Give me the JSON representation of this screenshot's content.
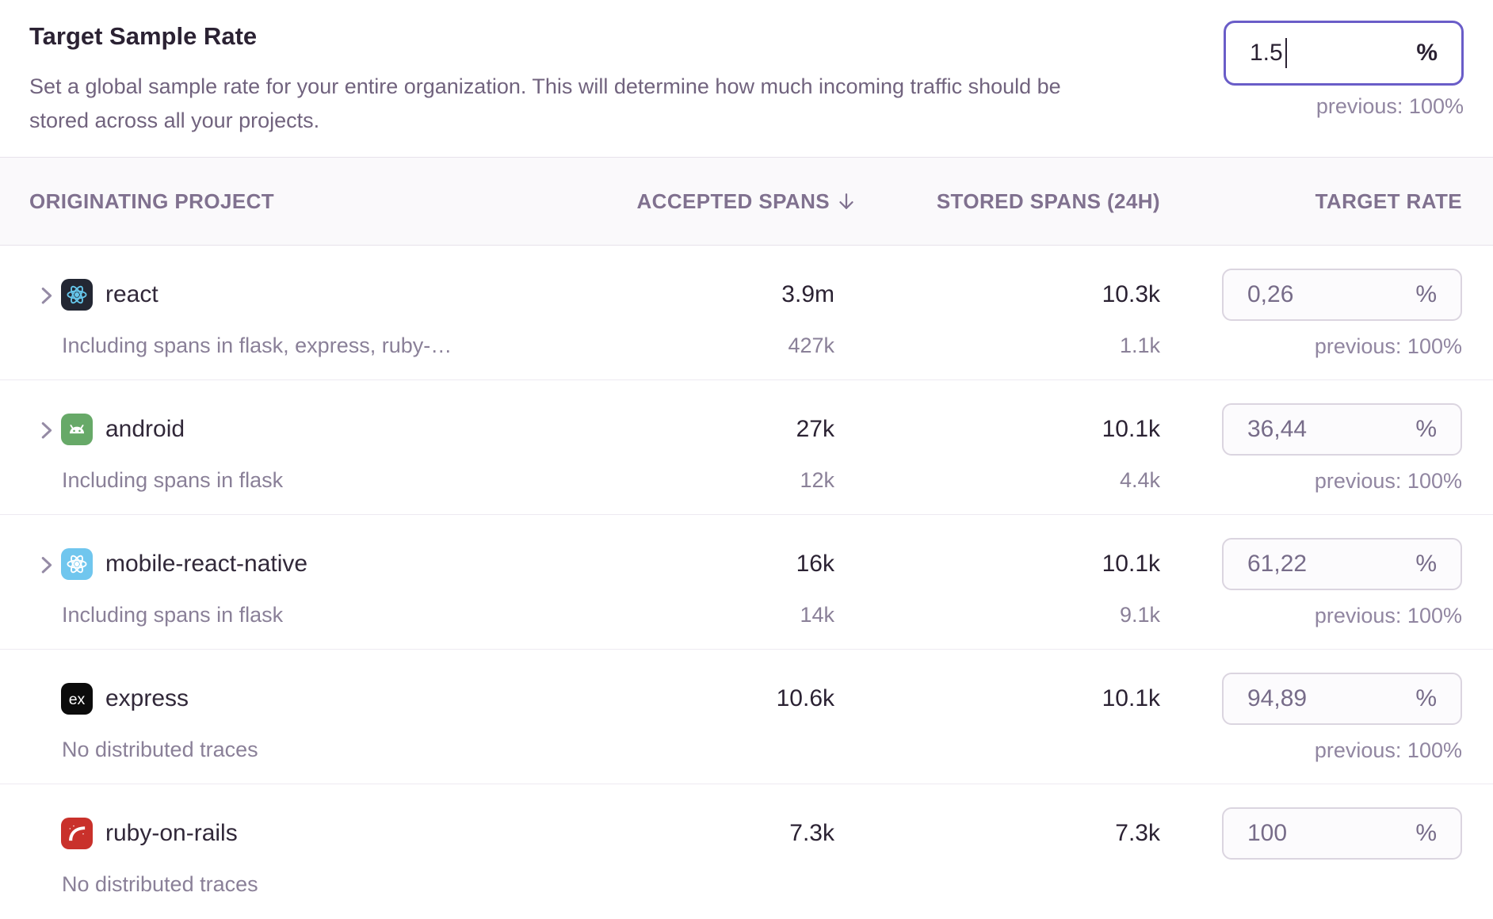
{
  "header": {
    "title": "Target Sample Rate",
    "description": "Set a global sample rate for your entire organization. This will determine how much incoming traffic should be stored across all your projects.",
    "input": {
      "value": "1.5",
      "suffix": "%",
      "previous": "previous: 100%"
    }
  },
  "table": {
    "columns": [
      {
        "label": "ORIGINATING PROJECT"
      },
      {
        "label": "ACCEPTED SPANS",
        "sort": "desc"
      },
      {
        "label": "STORED SPANS (24H)"
      },
      {
        "label": "TARGET RATE"
      }
    ],
    "rows": [
      {
        "name": "react",
        "icon": "react",
        "icon_bg": "#232733",
        "icon_fg": "#66c7ec",
        "expandable": true,
        "subtext": "Including spans in flask, express, ruby-…",
        "accepted": "3.9m",
        "accepted_sub": "427k",
        "stored": "10.3k",
        "stored_sub": "1.1k",
        "rate": "0,26",
        "rate_suffix": "%",
        "previous": "previous: 100%"
      },
      {
        "name": "android",
        "icon": "android",
        "icon_bg": "#67a968",
        "icon_fg": "#ffffff",
        "expandable": true,
        "subtext": "Including spans in flask",
        "accepted": "27k",
        "accepted_sub": "12k",
        "stored": "10.1k",
        "stored_sub": "4.4k",
        "rate": "36,44",
        "rate_suffix": "%",
        "previous": "previous: 100%"
      },
      {
        "name": "mobile-react-native",
        "icon": "react-native",
        "icon_bg": "#70c6ee",
        "icon_fg": "#ffffff",
        "expandable": true,
        "subtext": "Including spans in flask",
        "accepted": "16k",
        "accepted_sub": "14k",
        "stored": "10.1k",
        "stored_sub": "9.1k",
        "rate": "61,22",
        "rate_suffix": "%",
        "previous": "previous: 100%"
      },
      {
        "name": "express",
        "icon": "express",
        "icon_bg": "#0c0c0c",
        "icon_fg": "#ffffff",
        "expandable": false,
        "subtext": "No distributed traces",
        "accepted": "10.6k",
        "accepted_sub": "",
        "stored": "10.1k",
        "stored_sub": "",
        "rate": "94,89",
        "rate_suffix": "%",
        "previous": "previous: 100%"
      },
      {
        "name": "ruby-on-rails",
        "icon": "rails",
        "icon_bg": "#c9312b",
        "icon_fg": "#ffffff",
        "expandable": false,
        "subtext": "No distributed traces",
        "accepted": "7.3k",
        "accepted_sub": "",
        "stored": "7.3k",
        "stored_sub": "",
        "rate": "100",
        "rate_suffix": "%",
        "previous": ""
      }
    ]
  },
  "colors": {
    "focus_border": "#6a5dc8",
    "input_border": "#dbd5e0",
    "header_bg": "#faf9fb",
    "muted_text": "#71637e"
  }
}
